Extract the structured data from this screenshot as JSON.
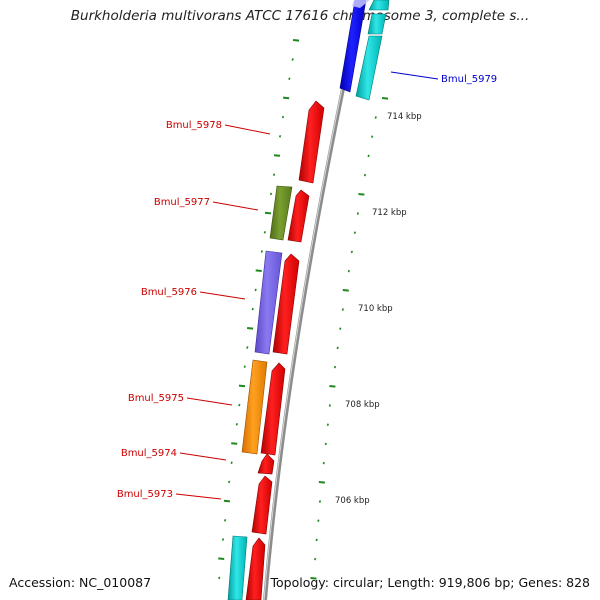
{
  "title": "Burkholderia multivorans ATCC 17616 chromosome 3, complete s...",
  "footer": {
    "accession": "Accession: NC_010087",
    "stats": "Topology: circular; Length: 919,806 bp; Genes: 828"
  },
  "colors": {
    "backbone": "#8c8c8c",
    "tick": "#1e8a1e",
    "label_red": "#cc0000",
    "label_blue": "#0000cc",
    "red": "#ff0000",
    "olive": "#6b8e23",
    "purple": "#7b68ee",
    "orange": "#ff8c00",
    "cyan": "#00cccc",
    "blue": "#0000ee"
  },
  "genome_map": {
    "coordinate_labels": [
      "714 kbp",
      "712 kbp",
      "710 kbp",
      "708 kbp",
      "706 kbp"
    ],
    "gene_labels": [
      "Bmul_5979",
      "Bmul_5978",
      "Bmul_5977",
      "Bmul_5976",
      "Bmul_5975",
      "Bmul_5974",
      "Bmul_5973"
    ]
  }
}
